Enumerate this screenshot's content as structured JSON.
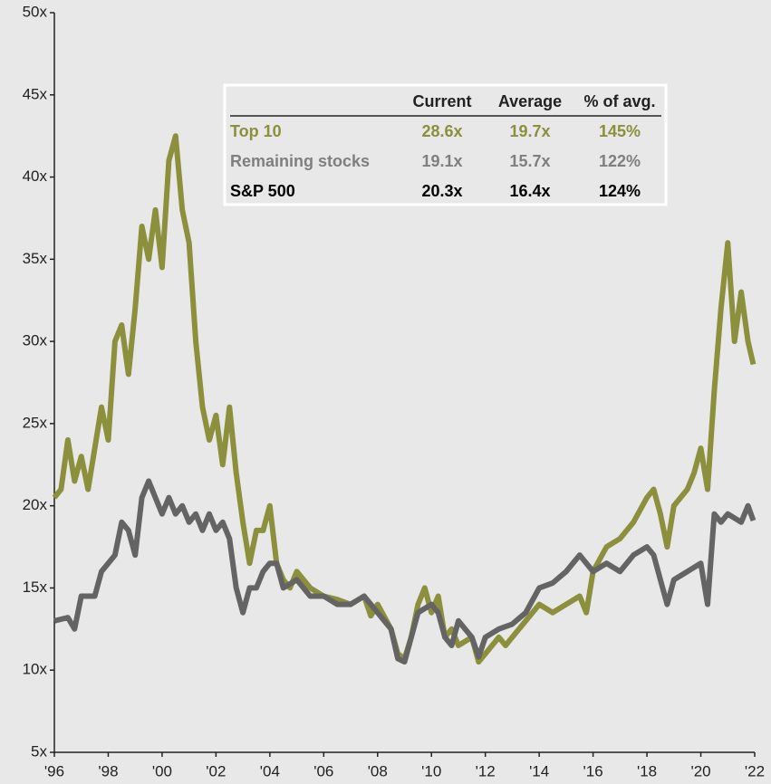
{
  "chart_data": {
    "type": "line",
    "ylim": [
      5,
      50
    ],
    "yticks": [
      {
        "value": 5,
        "label": "5x"
      },
      {
        "value": 10,
        "label": "10x"
      },
      {
        "value": 15,
        "label": "15x"
      },
      {
        "value": 20,
        "label": "20x"
      },
      {
        "value": 25,
        "label": "25x"
      },
      {
        "value": 30,
        "label": "30x"
      },
      {
        "value": 35,
        "label": "35x"
      },
      {
        "value": 40,
        "label": "40x"
      },
      {
        "value": 45,
        "label": "45x"
      },
      {
        "value": 50,
        "label": "50x"
      }
    ],
    "xlim": [
      1996,
      2022
    ],
    "xticks": [
      {
        "value": 1996,
        "label": "'96"
      },
      {
        "value": 1998,
        "label": "'98"
      },
      {
        "value": 2000,
        "label": "'00"
      },
      {
        "value": 2002,
        "label": "'02"
      },
      {
        "value": 2004,
        "label": "'04"
      },
      {
        "value": 2006,
        "label": "'06"
      },
      {
        "value": 2008,
        "label": "'08"
      },
      {
        "value": 2010,
        "label": "'10"
      },
      {
        "value": 2012,
        "label": "'12"
      },
      {
        "value": 2014,
        "label": "'14"
      },
      {
        "value": 2016,
        "label": "'16"
      },
      {
        "value": 2018,
        "label": "'18"
      },
      {
        "value": 2020,
        "label": "'20"
      },
      {
        "value": 2022,
        "label": "'22"
      }
    ],
    "series": [
      {
        "color": "#8c8f3c",
        "x": [
          1996.0,
          1996.25,
          1996.5,
          1996.75,
          1997.0,
          1997.25,
          1997.5,
          1997.75,
          1998.0,
          1998.25,
          1998.5,
          1998.75,
          1999.0,
          1999.25,
          1999.5,
          1999.75,
          2000.0,
          2000.25,
          2000.5,
          2000.75,
          2001.0,
          2001.25,
          2001.5,
          2001.75,
          2002.0,
          2002.25,
          2002.5,
          2002.75,
          2003.0,
          2003.25,
          2003.5,
          2003.75,
          2004.0,
          2004.25,
          2004.5,
          2004.75,
          2005.0,
          2005.5,
          2006.0,
          2006.5,
          2007.0,
          2007.5,
          2007.75,
          2008.0,
          2008.5,
          2008.75,
          2009.0,
          2009.25,
          2009.5,
          2009.75,
          2010.0,
          2010.25,
          2010.5,
          2010.75,
          2011.0,
          2011.5,
          2011.75,
          2012.0,
          2012.5,
          2012.75,
          2013.0,
          2013.5,
          2014.0,
          2014.5,
          2015.0,
          2015.5,
          2015.75,
          2016.0,
          2016.5,
          2017.0,
          2017.5,
          2018.0,
          2018.25,
          2018.5,
          2018.75,
          2019.0,
          2019.5,
          2019.75,
          2020.0,
          2020.25,
          2020.5,
          2020.75,
          2021.0,
          2021.25,
          2021.5,
          2021.75,
          2021.95
        ],
        "values": [
          20.5,
          21,
          24,
          21.5,
          23,
          21,
          23.5,
          26,
          24,
          30,
          31,
          28,
          32,
          37,
          35,
          38,
          34.5,
          41,
          42.5,
          38,
          36,
          30,
          26,
          24,
          25.5,
          22.5,
          26,
          22,
          19,
          16.5,
          18.5,
          18.5,
          20,
          16.5,
          15.5,
          15,
          16,
          15,
          14.5,
          14.3,
          14,
          14.5,
          13.3,
          14,
          12.5,
          11,
          10.7,
          12,
          14,
          15,
          13.5,
          14.5,
          12,
          12.5,
          11.5,
          12,
          10.5,
          11,
          12,
          11.5,
          12,
          13,
          14,
          13.5,
          14,
          14.5,
          13.5,
          16,
          17.5,
          18,
          19,
          20.5,
          21,
          19.5,
          17.5,
          20,
          21,
          22,
          23.5,
          21,
          27,
          32,
          36,
          30,
          33,
          30,
          28.6
        ]
      },
      {
        "color": "#646464",
        "x": [
          1996.0,
          1996.5,
          1996.75,
          1997.0,
          1997.5,
          1997.75,
          1998.0,
          1998.25,
          1998.5,
          1998.75,
          1999.0,
          1999.25,
          1999.5,
          1999.75,
          2000.0,
          2000.25,
          2000.5,
          2000.75,
          2001.0,
          2001.25,
          2001.5,
          2001.75,
          2002.0,
          2002.25,
          2002.5,
          2002.75,
          2003.0,
          2003.25,
          2003.5,
          2003.75,
          2004.0,
          2004.25,
          2004.5,
          2005.0,
          2005.5,
          2006.0,
          2006.5,
          2007.0,
          2007.5,
          2008.0,
          2008.5,
          2008.75,
          2009.0,
          2009.25,
          2009.5,
          2010.0,
          2010.25,
          2010.5,
          2010.75,
          2011.0,
          2011.5,
          2011.75,
          2012.0,
          2012.5,
          2013.0,
          2013.5,
          2014.0,
          2014.5,
          2015.0,
          2015.5,
          2016.0,
          2016.5,
          2017.0,
          2017.5,
          2018.0,
          2018.25,
          2018.5,
          2018.75,
          2019.0,
          2019.5,
          2020.0,
          2020.25,
          2020.5,
          2020.75,
          2021.0,
          2021.5,
          2021.75,
          2021.95
        ],
        "values": [
          13,
          13.2,
          12.5,
          14.5,
          14.5,
          16,
          16.5,
          17,
          19,
          18.5,
          17,
          20.5,
          21.5,
          20.5,
          19.5,
          20.5,
          19.5,
          20,
          19,
          19.5,
          18.5,
          19.5,
          18.5,
          19,
          18,
          15,
          13.5,
          15,
          15,
          16,
          16.5,
          16.5,
          15,
          15.5,
          14.5,
          14.5,
          14,
          14,
          14.5,
          13.5,
          12.5,
          10.7,
          10.5,
          12,
          13.5,
          14,
          13.5,
          12,
          11.5,
          13,
          12,
          10.8,
          12,
          12.5,
          12.8,
          13.5,
          15,
          15.3,
          16,
          17,
          16,
          16.5,
          16,
          17,
          17.5,
          17,
          15.5,
          14,
          15.5,
          16,
          16.5,
          14,
          19.5,
          19,
          19.5,
          19,
          20,
          19.1
        ]
      }
    ],
    "table": {
      "columns": [
        "Current",
        "Average",
        "% of avg."
      ],
      "rows": [
        {
          "label": "Top 10",
          "color": "#8c8f3c",
          "bold": true,
          "cells": [
            "28.6x",
            "19.7x",
            "145%"
          ]
        },
        {
          "label": "Remaining stocks",
          "color": "#7f7f7f",
          "bold": true,
          "cells": [
            "19.1x",
            "15.7x",
            "122%"
          ]
        },
        {
          "label": "S&P 500",
          "color": "#000000",
          "bold": true,
          "cells": [
            "20.3x",
            "16.4x",
            "124%"
          ]
        }
      ]
    }
  }
}
